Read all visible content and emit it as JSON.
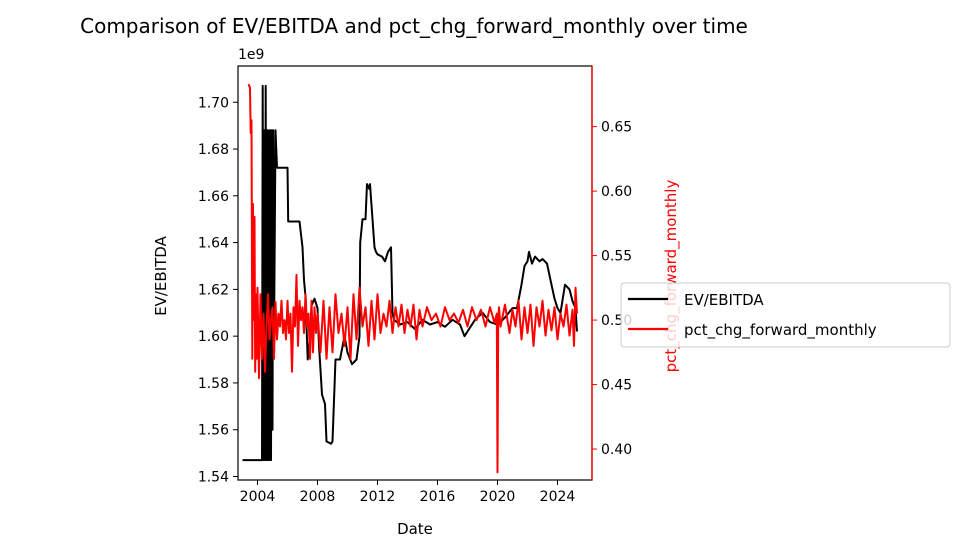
{
  "chart_data": {
    "type": "line",
    "title": "Comparison of EV/EBITDA and pct_chg_forward_monthly over time",
    "xlabel": "Date",
    "ylabel_left": "EV/EBITDA",
    "ylabel_right": "pct_chg_forward_monthly",
    "left_axis_offset_label": "1e9",
    "x_ticks": [
      "2004",
      "2008",
      "2012",
      "2016",
      "2020",
      "2024"
    ],
    "y_left_ticks": [
      "1.54",
      "1.56",
      "1.58",
      "1.60",
      "1.62",
      "1.64",
      "1.66",
      "1.68",
      "1.70"
    ],
    "y_right_ticks": [
      "0.40",
      "0.45",
      "0.50",
      "0.55",
      "0.60",
      "0.65"
    ],
    "xlim": [
      2002.7,
      2026.3
    ],
    "ylim_left": [
      1.5385,
      1.7155
    ],
    "ylim_right": [
      0.376,
      0.697
    ],
    "grid": false,
    "legend_position": "right, outside",
    "series": [
      {
        "name": "EV/EBITDA",
        "axis": "left",
        "color": "#000000",
        "x": [
          2003.0,
          2003.4,
          2004.3,
          2004.35,
          2004.4,
          2004.45,
          2004.5,
          2004.55,
          2004.6,
          2004.65,
          2004.7,
          2004.75,
          2004.8,
          2004.85,
          2004.9,
          2004.95,
          2005.0,
          2005.05,
          2005.1,
          2005.2,
          2005.3,
          2005.5,
          2005.7,
          2006.0,
          2006.05,
          2006.5,
          2006.55,
          2006.8,
          2007.0,
          2007.1,
          2007.2,
          2007.35,
          2007.5,
          2007.6,
          2007.8,
          2008.0,
          2008.1,
          2008.3,
          2008.5,
          2008.6,
          2008.9,
          2009.0,
          2009.2,
          2009.5,
          2009.8,
          2010.0,
          2010.3,
          2010.6,
          2010.8,
          2010.85,
          2011.0,
          2011.2,
          2011.3,
          2011.45,
          2011.5,
          2011.8,
          2011.9,
          2012.0,
          2012.3,
          2012.5,
          2012.7,
          2012.9,
          2013.0,
          2013.1,
          2013.5,
          2014.0,
          2014.5,
          2015.0,
          2015.5,
          2016.0,
          2016.5,
          2017.0,
          2017.5,
          2017.8,
          2018.0,
          2018.5,
          2019.0,
          2019.5,
          2020.0,
          2020.2,
          2020.5,
          2021.0,
          2021.3,
          2021.6,
          2021.8,
          2022.0,
          2022.1,
          2022.3,
          2022.5,
          2022.8,
          2023.0,
          2023.3,
          2023.5,
          2023.8,
          2024.0,
          2024.2,
          2024.5,
          2024.8,
          2025.0,
          2025.2,
          2025.3
        ],
        "values": [
          1.547,
          1.547,
          1.547,
          1.707,
          1.547,
          1.688,
          1.547,
          1.707,
          1.547,
          1.688,
          1.547,
          1.688,
          1.547,
          1.688,
          1.547,
          1.688,
          1.56,
          1.688,
          1.598,
          1.688,
          1.672,
          1.672,
          1.672,
          1.672,
          1.649,
          1.649,
          1.649,
          1.649,
          1.638,
          1.624,
          1.617,
          1.59,
          1.6,
          1.613,
          1.616,
          1.612,
          1.596,
          1.575,
          1.571,
          1.555,
          1.554,
          1.555,
          1.59,
          1.59,
          1.6,
          1.593,
          1.588,
          1.59,
          1.6,
          1.64,
          1.65,
          1.65,
          1.665,
          1.663,
          1.665,
          1.638,
          1.636,
          1.635,
          1.634,
          1.632,
          1.636,
          1.638,
          1.61,
          1.607,
          1.605,
          1.606,
          1.603,
          1.607,
          1.605,
          1.606,
          1.604,
          1.607,
          1.605,
          1.6,
          1.602,
          1.607,
          1.61,
          1.606,
          1.605,
          1.606,
          1.608,
          1.612,
          1.612,
          1.622,
          1.63,
          1.632,
          1.636,
          1.631,
          1.634,
          1.632,
          1.633,
          1.631,
          1.625,
          1.616,
          1.612,
          1.61,
          1.622,
          1.62,
          1.615,
          1.612,
          1.602
        ]
      },
      {
        "name": "pct_chg_forward_monthly",
        "axis": "right",
        "color": "#ff0000",
        "x": [
          2003.4,
          2003.5,
          2003.55,
          2003.6,
          2003.65,
          2003.7,
          2003.75,
          2003.8,
          2003.85,
          2003.9,
          2003.95,
          2004.0,
          2004.1,
          2004.2,
          2004.3,
          2004.4,
          2004.5,
          2004.6,
          2004.7,
          2004.8,
          2004.9,
          2005.0,
          2005.1,
          2005.2,
          2005.3,
          2005.4,
          2005.5,
          2005.6,
          2005.7,
          2005.8,
          2005.9,
          2006.0,
          2006.1,
          2006.2,
          2006.3,
          2006.4,
          2006.5,
          2006.6,
          2006.7,
          2006.8,
          2006.9,
          2007.0,
          2007.1,
          2007.2,
          2007.3,
          2007.4,
          2007.5,
          2007.6,
          2007.7,
          2007.8,
          2007.9,
          2008.0,
          2008.2,
          2008.4,
          2008.6,
          2008.8,
          2009.0,
          2009.2,
          2009.4,
          2009.6,
          2009.8,
          2010.0,
          2010.2,
          2010.4,
          2010.6,
          2010.8,
          2011.0,
          2011.2,
          2011.4,
          2011.6,
          2011.8,
          2012.0,
          2012.2,
          2012.4,
          2012.6,
          2012.8,
          2013.0,
          2013.2,
          2013.4,
          2013.6,
          2013.8,
          2014.0,
          2014.2,
          2014.4,
          2014.6,
          2014.8,
          2015.0,
          2015.3,
          2015.6,
          2015.9,
          2016.2,
          2016.5,
          2016.8,
          2017.1,
          2017.4,
          2017.7,
          2018.0,
          2018.3,
          2018.6,
          2018.9,
          2019.2,
          2019.5,
          2019.8,
          2019.95,
          2020.0,
          2020.05,
          2020.1,
          2020.2,
          2020.5,
          2020.8,
          2021.0,
          2021.2,
          2021.4,
          2021.6,
          2021.8,
          2022.0,
          2022.2,
          2022.4,
          2022.6,
          2022.8,
          2023.0,
          2023.2,
          2023.4,
          2023.6,
          2023.8,
          2024.0,
          2024.2,
          2024.4,
          2024.6,
          2024.8,
          2025.0,
          2025.1,
          2025.2,
          2025.3
        ],
        "values": [
          0.683,
          0.68,
          0.645,
          0.655,
          0.47,
          0.59,
          0.5,
          0.58,
          0.46,
          0.52,
          0.47,
          0.525,
          0.455,
          0.52,
          0.47,
          0.505,
          0.46,
          0.495,
          0.52,
          0.485,
          0.5,
          0.51,
          0.47,
          0.514,
          0.485,
          0.505,
          0.495,
          0.515,
          0.49,
          0.5,
          0.485,
          0.515,
          0.49,
          0.505,
          0.46,
          0.51,
          0.495,
          0.535,
          0.48,
          0.515,
          0.5,
          0.51,
          0.49,
          0.52,
          0.495,
          0.505,
          0.47,
          0.515,
          0.475,
          0.51,
          0.49,
          0.505,
          0.475,
          0.515,
          0.47,
          0.51,
          0.475,
          0.52,
          0.49,
          0.505,
          0.48,
          0.51,
          0.47,
          0.52,
          0.485,
          0.525,
          0.495,
          0.51,
          0.48,
          0.515,
          0.485,
          0.52,
          0.49,
          0.505,
          0.495,
          0.515,
          0.49,
          0.51,
          0.495,
          0.512,
          0.49,
          0.508,
          0.495,
          0.512,
          0.485,
          0.508,
          0.495,
          0.51,
          0.5,
          0.505,
          0.495,
          0.51,
          0.5,
          0.505,
          0.498,
          0.508,
          0.495,
          0.51,
          0.5,
          0.508,
          0.495,
          0.51,
          0.498,
          0.505,
          0.382,
          0.5,
          0.51,
          0.495,
          0.512,
          0.49,
          0.508,
          0.495,
          0.515,
          0.485,
          0.51,
          0.49,
          0.512,
          0.48,
          0.51,
          0.495,
          0.515,
          0.488,
          0.508,
          0.492,
          0.51,
          0.485,
          0.505,
          0.495,
          0.512,
          0.488,
          0.508,
          0.48,
          0.525,
          0.505
        ]
      }
    ]
  }
}
